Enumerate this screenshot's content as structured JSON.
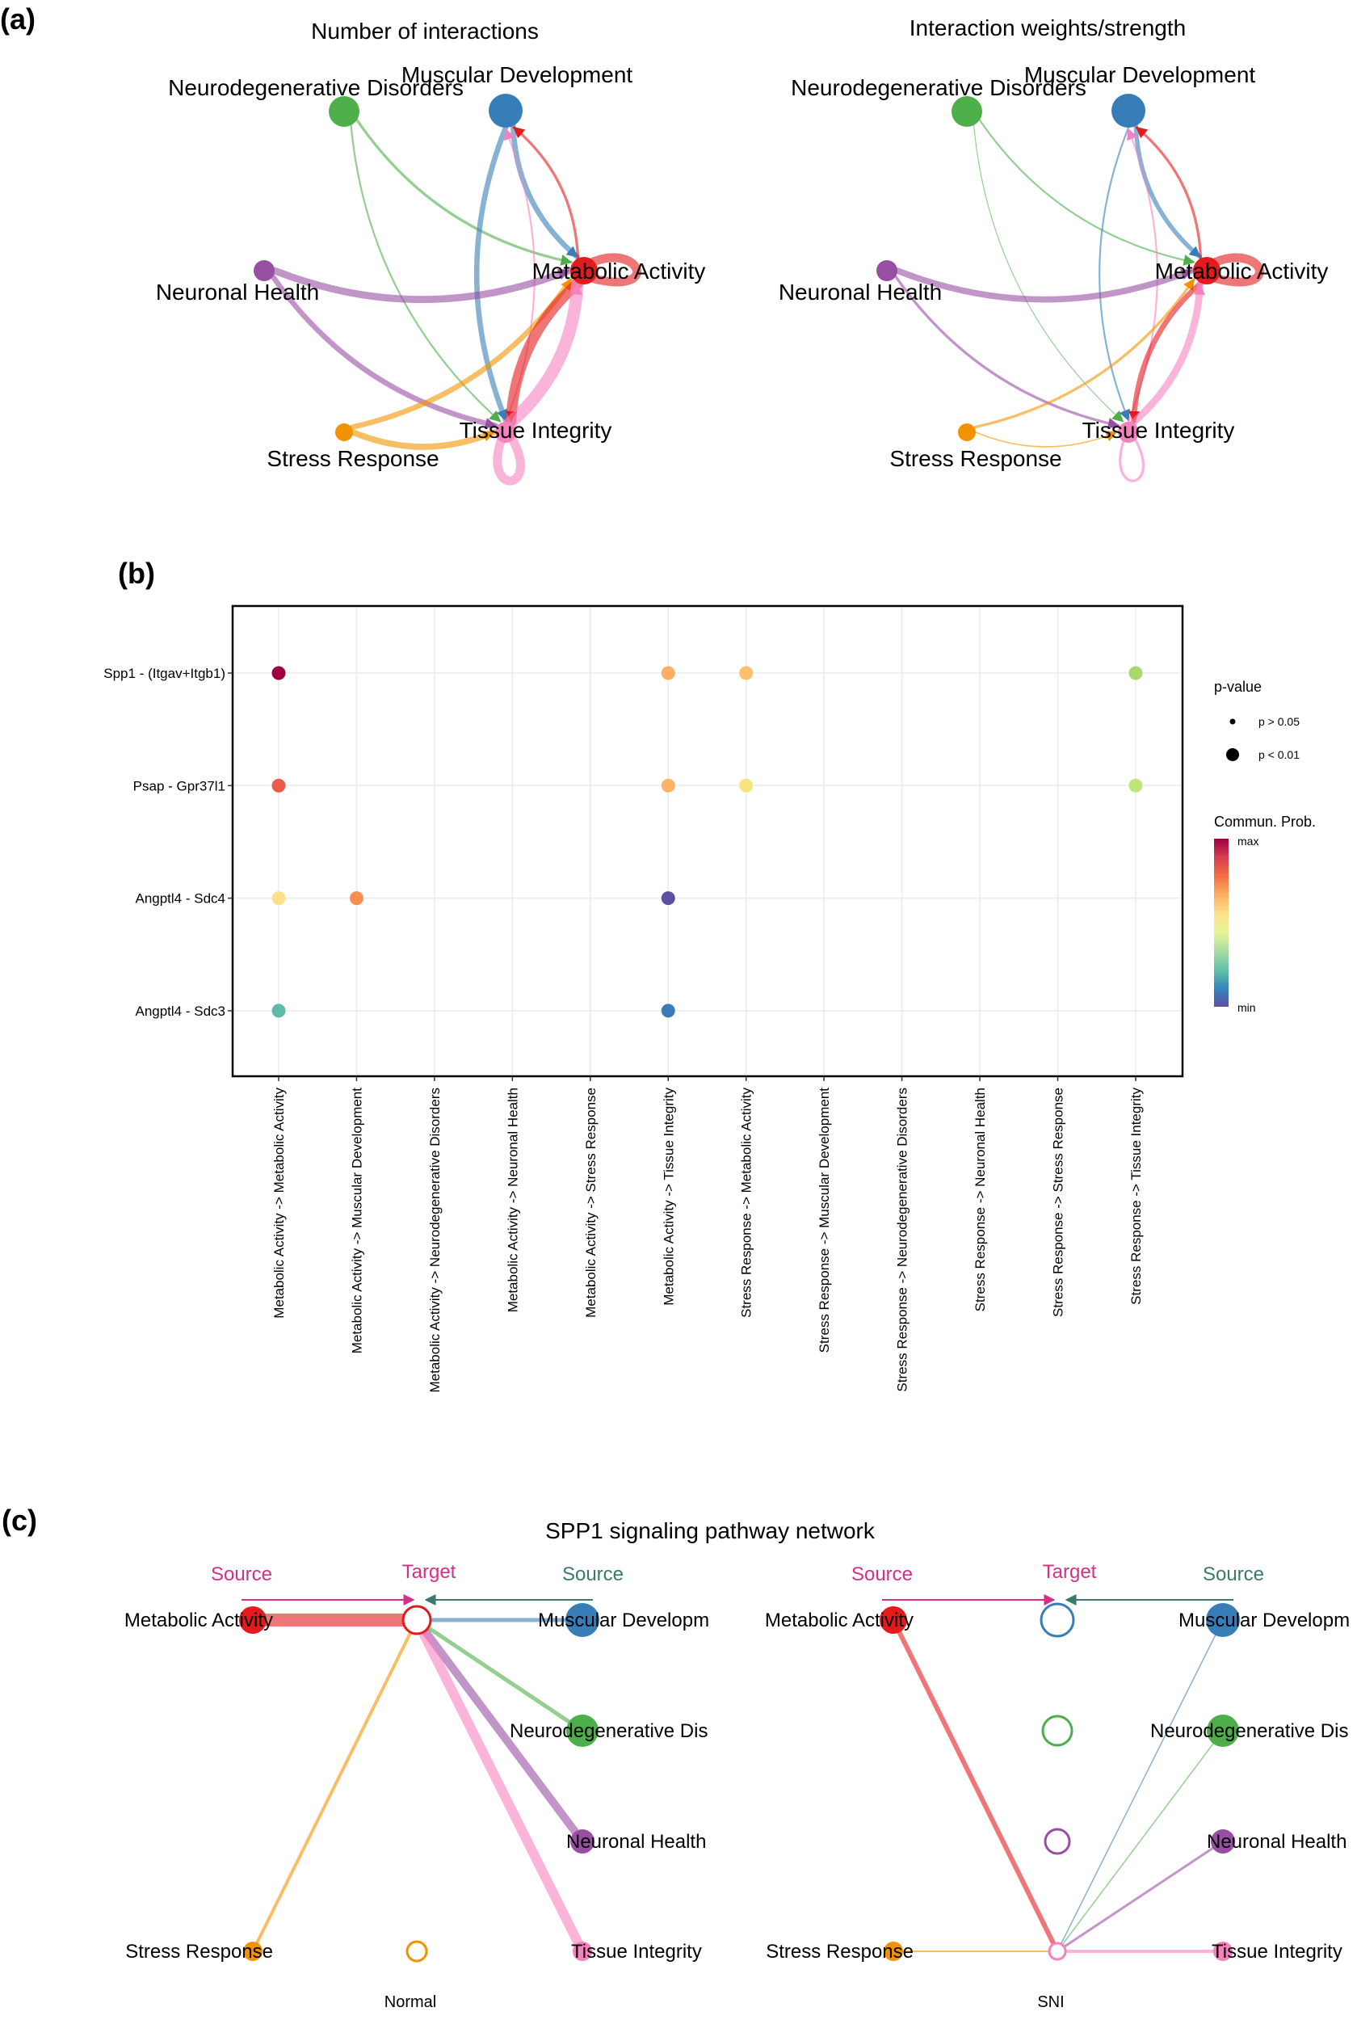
{
  "panel_labels": {
    "a": "(a)",
    "b": "(b)",
    "c": "(c)"
  },
  "nodes": [
    {
      "name": "Neurodegenerative Disorders",
      "color": "#4daf4a"
    },
    {
      "name": "Muscular Development",
      "color": "#377eb8"
    },
    {
      "name": "Neuronal Health",
      "color": "#984ea3"
    },
    {
      "name": "Metabolic Activity",
      "color": "#e41a1c"
    },
    {
      "name": "Stress Response",
      "color": "#f39200"
    },
    {
      "name": "Tissue Integrity",
      "color": "#f781bf"
    }
  ],
  "panel_a": {
    "networks": [
      {
        "title": "Number of interactions",
        "edges": [
          {
            "from": "Neurodegenerative Disorders",
            "to": "Metabolic Activity",
            "weight": 3
          },
          {
            "from": "Neurodegenerative Disorders",
            "to": "Tissue Integrity",
            "weight": 2
          },
          {
            "from": "Muscular Development",
            "to": "Metabolic Activity",
            "weight": 6
          },
          {
            "from": "Muscular Development",
            "to": "Tissue Integrity",
            "weight": 6
          },
          {
            "from": "Metabolic Activity",
            "to": "Muscular Development",
            "weight": 3
          },
          {
            "from": "Tissue Integrity",
            "to": "Muscular Development",
            "weight": 2
          },
          {
            "from": "Neuronal Health",
            "to": "Metabolic Activity",
            "weight": 8
          },
          {
            "from": "Neuronal Health",
            "to": "Tissue Integrity",
            "weight": 6
          },
          {
            "from": "Stress Response",
            "to": "Metabolic Activity",
            "weight": 6
          },
          {
            "from": "Stress Response",
            "to": "Tissue Integrity",
            "weight": 7
          },
          {
            "from": "Metabolic Activity",
            "to": "Tissue Integrity",
            "weight": 12
          },
          {
            "from": "Tissue Integrity",
            "to": "Metabolic Activity",
            "weight": 14
          },
          {
            "from": "Metabolic Activity",
            "to": "Metabolic Activity",
            "weight": 10
          },
          {
            "from": "Tissue Integrity",
            "to": "Tissue Integrity",
            "weight": 10
          }
        ]
      },
      {
        "title": "Interaction weights/strength",
        "edges": [
          {
            "from": "Neurodegenerative Disorders",
            "to": "Metabolic Activity",
            "weight": 2
          },
          {
            "from": "Neurodegenerative Disorders",
            "to": "Tissue Integrity",
            "weight": 1
          },
          {
            "from": "Muscular Development",
            "to": "Metabolic Activity",
            "weight": 5
          },
          {
            "from": "Muscular Development",
            "to": "Tissue Integrity",
            "weight": 2
          },
          {
            "from": "Metabolic Activity",
            "to": "Muscular Development",
            "weight": 3
          },
          {
            "from": "Tissue Integrity",
            "to": "Muscular Development",
            "weight": 2
          },
          {
            "from": "Neuronal Health",
            "to": "Metabolic Activity",
            "weight": 7
          },
          {
            "from": "Neuronal Health",
            "to": "Tissue Integrity",
            "weight": 3
          },
          {
            "from": "Stress Response",
            "to": "Metabolic Activity",
            "weight": 3
          },
          {
            "from": "Stress Response",
            "to": "Tissue Integrity",
            "weight": 1.5
          },
          {
            "from": "Metabolic Activity",
            "to": "Tissue Integrity",
            "weight": 6
          },
          {
            "from": "Tissue Integrity",
            "to": "Metabolic Activity",
            "weight": 8
          },
          {
            "from": "Metabolic Activity",
            "to": "Metabolic Activity",
            "weight": 10
          },
          {
            "from": "Tissue Integrity",
            "to": "Tissue Integrity",
            "weight": 3
          }
        ]
      }
    ]
  },
  "chart_data": {
    "type": "scatter",
    "title": "",
    "xlabel": "",
    "ylabel": "",
    "categories_x": [
      "Metabolic Activity -> Metabolic Activity",
      "Metabolic Activity -> Muscular Development",
      "Metabolic Activity -> Neurodegenerative Disorders",
      "Metabolic Activity -> Neuronal Health",
      "Metabolic Activity -> Stress Response",
      "Metabolic Activity -> Tissue Integrity",
      "Stress Response -> Metabolic Activity",
      "Stress Response -> Muscular Development",
      "Stress Response -> Neurodegenerative Disorders",
      "Stress Response -> Neuronal Health",
      "Stress Response -> Stress Response",
      "Stress Response -> Tissue Integrity"
    ],
    "categories_y": [
      "Spp1  - (Itgav+Itgb1)",
      "Psap  - Gpr37l1",
      "Angptl4  - Sdc4",
      "Angptl4  - Sdc3"
    ],
    "points": [
      {
        "x": "Metabolic Activity -> Metabolic Activity",
        "y": "Spp1  - (Itgav+Itgb1)",
        "prob": 1.0,
        "color": "#9e0142",
        "pvalue": "p < 0.01"
      },
      {
        "x": "Metabolic Activity -> Tissue Integrity",
        "y": "Spp1  - (Itgav+Itgb1)",
        "prob": 0.7,
        "color": "#fdae61",
        "pvalue": "p < 0.01"
      },
      {
        "x": "Stress Response -> Metabolic Activity",
        "y": "Spp1  - (Itgav+Itgb1)",
        "prob": 0.65,
        "color": "#fec06a",
        "pvalue": "p < 0.01"
      },
      {
        "x": "Stress Response -> Tissue Integrity",
        "y": "Spp1  - (Itgav+Itgb1)",
        "prob": 0.4,
        "color": "#a6d96a",
        "pvalue": "p < 0.01"
      },
      {
        "x": "Metabolic Activity -> Metabolic Activity",
        "y": "Psap  - Gpr37l1",
        "prob": 0.88,
        "color": "#e95c47",
        "pvalue": "p < 0.01"
      },
      {
        "x": "Metabolic Activity -> Tissue Integrity",
        "y": "Psap  - Gpr37l1",
        "prob": 0.7,
        "color": "#fdb466",
        "pvalue": "p < 0.01"
      },
      {
        "x": "Stress Response -> Metabolic Activity",
        "y": "Psap  - Gpr37l1",
        "prob": 0.55,
        "color": "#f4e47a",
        "pvalue": "p < 0.01"
      },
      {
        "x": "Stress Response -> Tissue Integrity",
        "y": "Psap  - Gpr37l1",
        "prob": 0.45,
        "color": "#bfe47a",
        "pvalue": "p < 0.01"
      },
      {
        "x": "Metabolic Activity -> Metabolic Activity",
        "y": "Angptl4  - Sdc4",
        "prob": 0.58,
        "color": "#fee08b",
        "pvalue": "p < 0.01"
      },
      {
        "x": "Metabolic Activity -> Muscular Development",
        "y": "Angptl4  - Sdc4",
        "prob": 0.75,
        "color": "#f98e52",
        "pvalue": "p < 0.01"
      },
      {
        "x": "Metabolic Activity -> Tissue Integrity",
        "y": "Angptl4  - Sdc4",
        "prob": 0.0,
        "color": "#5e4fa2",
        "pvalue": "p < 0.01"
      },
      {
        "x": "Metabolic Activity -> Metabolic Activity",
        "y": "Angptl4  - Sdc3",
        "prob": 0.25,
        "color": "#5fbaa8",
        "pvalue": "p < 0.01"
      },
      {
        "x": "Metabolic Activity -> Tissue Integrity",
        "y": "Angptl4  - Sdc3",
        "prob": 0.1,
        "color": "#3a7bb8",
        "pvalue": "p < 0.01"
      }
    ],
    "grid": true,
    "legend": {
      "placement": "right",
      "size_title": "p-value",
      "size_items": [
        "p > 0.05",
        "p < 0.01"
      ],
      "color_title": "Commun. Prob.",
      "color_max": "max",
      "color_min": "min",
      "colormap": [
        "#9e0142",
        "#d53e4f",
        "#f46d43",
        "#fdae61",
        "#fee08b",
        "#e6f598",
        "#abdda4",
        "#66c2a5",
        "#3288bd",
        "#5e4fa2"
      ]
    }
  },
  "panel_c": {
    "title": "SPP1 signaling pathway network",
    "source_left": "Source",
    "target": "Target",
    "source_right": "Source",
    "source_left_color": "#d62f87",
    "source_right_color": "#3a7a6e",
    "groups": [
      {
        "label": "Normal",
        "left_labels": [
          "Metabolic Activity",
          "Stress Response"
        ],
        "right_labels": [
          "Muscular Developm",
          "Neurodegenerative Dis",
          "Neuronal Health",
          "Tissue Integrity"
        ],
        "edges": [
          {
            "from": "Metabolic Activity",
            "to": "Metabolic Activity",
            "weight": 16
          },
          {
            "from": "Muscular Development",
            "to": "Metabolic Activity",
            "weight": 5
          },
          {
            "from": "Neurodegenerative Disorders",
            "to": "Metabolic Activity",
            "weight": 5
          },
          {
            "from": "Neuronal Health",
            "to": "Metabolic Activity",
            "weight": 10
          },
          {
            "from": "Tissue Integrity",
            "to": "Metabolic Activity",
            "weight": 12
          },
          {
            "from": "Stress Response",
            "to": "Metabolic Activity",
            "weight": 4
          }
        ]
      },
      {
        "label": "SNI",
        "left_labels": [
          "Metabolic Activity",
          "Stress Response"
        ],
        "right_labels": [
          "Muscular Developm",
          "Neurodegenerative Dis",
          "Neuronal Health",
          "Tissue Integrity"
        ],
        "edges": [
          {
            "from": "Metabolic Activity",
            "to": "Tissue Integrity",
            "weight": 6
          },
          {
            "from": "Stress Response",
            "to": "Tissue Integrity",
            "weight": 2
          },
          {
            "from": "Muscular Development",
            "to": "Tissue Integrity",
            "weight": 1.5
          },
          {
            "from": "Neurodegenerative Disorders",
            "to": "Tissue Integrity",
            "weight": 1.5
          },
          {
            "from": "Neuronal Health",
            "to": "Tissue Integrity",
            "weight": 3
          },
          {
            "from": "Tissue Integrity",
            "to": "Tissue Integrity",
            "weight": 4
          }
        ]
      }
    ]
  }
}
